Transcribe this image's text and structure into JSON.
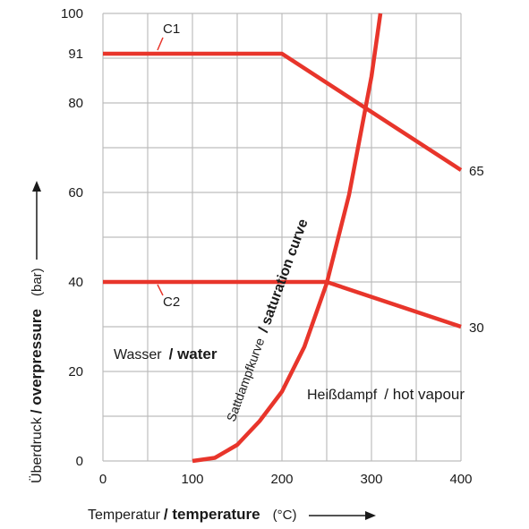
{
  "chart_data": {
    "type": "line",
    "x_axis": {
      "label_de": "Temperatur",
      "label_separator": " / ",
      "label_en": "temperature",
      "unit": "(°C)",
      "range": [
        0,
        400
      ],
      "ticks": [
        "0",
        "100",
        "200",
        "300",
        "400"
      ]
    },
    "y_axis": {
      "label_de": "Überdruck",
      "label_separator": " / ",
      "label_en": "overpressure",
      "unit": "(bar)",
      "range": [
        0,
        100
      ],
      "ticks": [
        "0",
        "20",
        "40",
        "60",
        "80",
        "100"
      ],
      "extra_ticks": [
        "91"
      ]
    },
    "grid": true,
    "series": [
      {
        "name": "C1",
        "color": "#e8352b",
        "points": [
          [
            0,
            91
          ],
          [
            200,
            91
          ],
          [
            400,
            65
          ]
        ],
        "end_label": "65"
      },
      {
        "name": "C2",
        "color": "#e8352b",
        "points": [
          [
            0,
            40
          ],
          [
            250,
            40
          ],
          [
            400,
            30
          ]
        ],
        "end_label": "30"
      },
      {
        "name": "saturation curve",
        "color": "#e8352b",
        "points": [
          [
            100,
            0
          ],
          [
            125,
            0.7
          ],
          [
            150,
            3.6
          ],
          [
            175,
            8.9
          ],
          [
            200,
            15.5
          ],
          [
            225,
            25.5
          ],
          [
            250,
            39.7
          ],
          [
            275,
            59.5
          ],
          [
            300,
            85.9
          ],
          [
            310,
            100
          ]
        ]
      }
    ],
    "annotations": {
      "c1": "C1",
      "c2": "C2",
      "water_de": "Wasser",
      "water_en": "/ water",
      "vapour_de": "Heißdampf",
      "vapour_en": "/ hot vapour",
      "sat_de": "Sattdampfkurve",
      "sat_en": "/ saturation curve"
    }
  }
}
